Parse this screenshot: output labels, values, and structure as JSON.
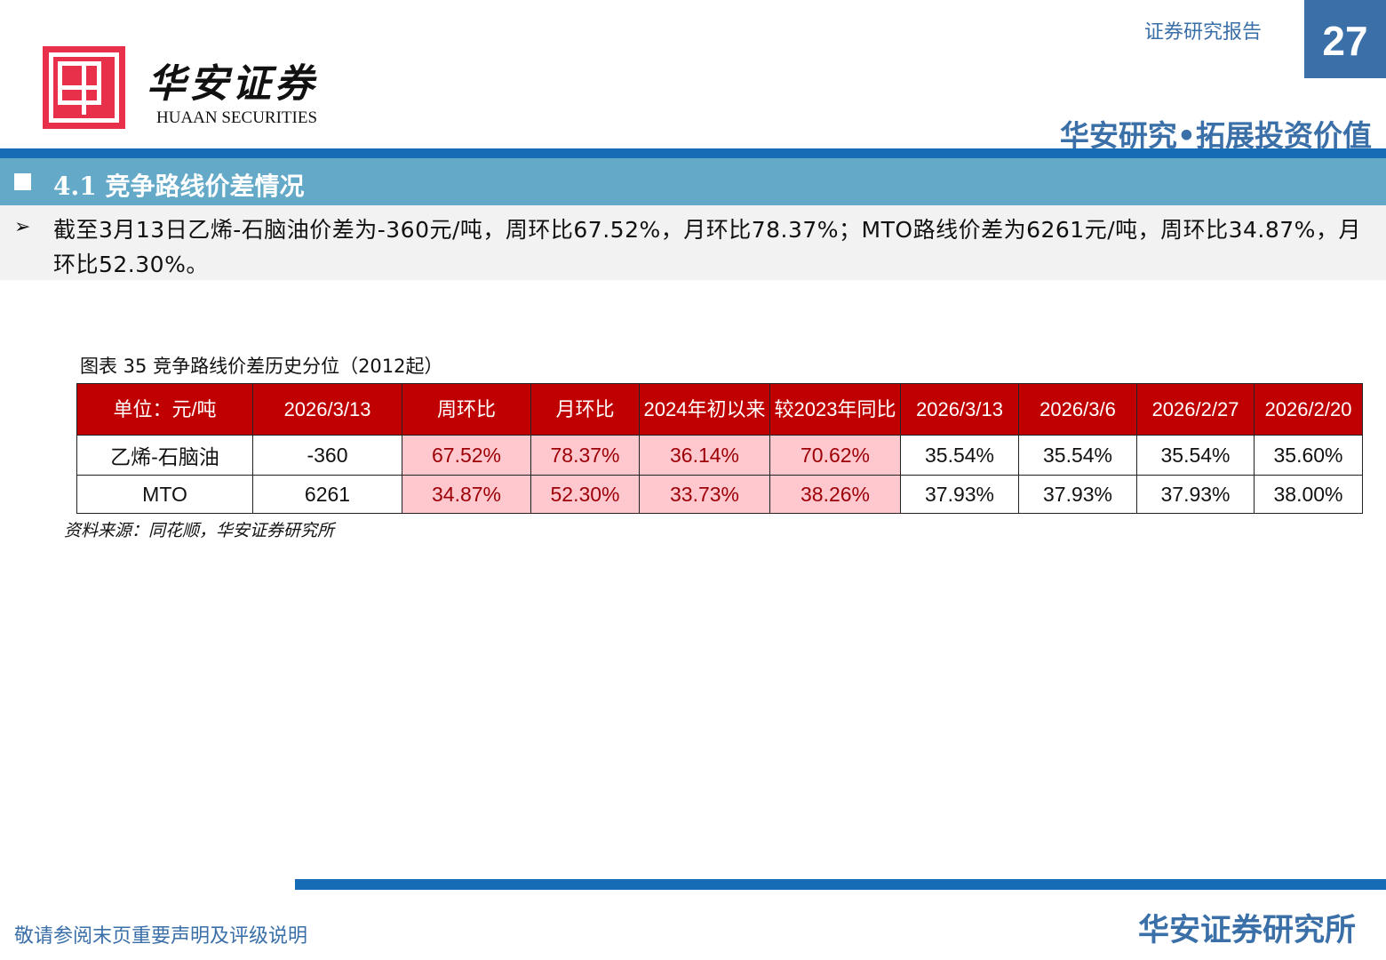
{
  "header": {
    "logo_cn": "华安证券",
    "logo_en": "HUAAN SECURITIES",
    "report_label": "证券研究报告",
    "page_number": "27",
    "slogan": "华安研究•拓展投资价值"
  },
  "section": {
    "title": "4.1 竞争路线价差情况"
  },
  "summary": {
    "text": "截至3月13日乙烯-石脑油价差为-360元/吨，周环比67.52%，月环比78.37%；MTO路线价差为6261元/吨，周环比34.87%，月环比52.30%。"
  },
  "figure": {
    "caption": "图表 35 竞争路线价差历史分位（2012起）",
    "source": "资料来源：同花顺，华安证券研究所"
  },
  "table": {
    "headers": [
      "单位：元/吨",
      "2026/3/13",
      "周环比",
      "月环比",
      "2024年初以来",
      "较2023年同比",
      "2026/3/13",
      "2026/3/6",
      "2026/2/27",
      "2026/2/20"
    ],
    "rows": [
      [
        "乙烯-石脑油",
        "-360",
        "67.52%",
        "78.37%",
        "36.14%",
        "70.62%",
        "35.54%",
        "35.54%",
        "35.54%",
        "35.60%"
      ],
      [
        "MTO",
        "6261",
        "34.87%",
        "52.30%",
        "33.73%",
        "38.26%",
        "37.93%",
        "37.93%",
        "37.93%",
        "38.00%"
      ]
    ]
  },
  "footer": {
    "disclaimer": "敬请参阅末页重要声明及评级说明",
    "org": "华安证券研究所"
  },
  "colors": {
    "brand_blue": "#176cb6",
    "header_red": "#c00000",
    "highlight_pink": "#ffc7ce"
  }
}
